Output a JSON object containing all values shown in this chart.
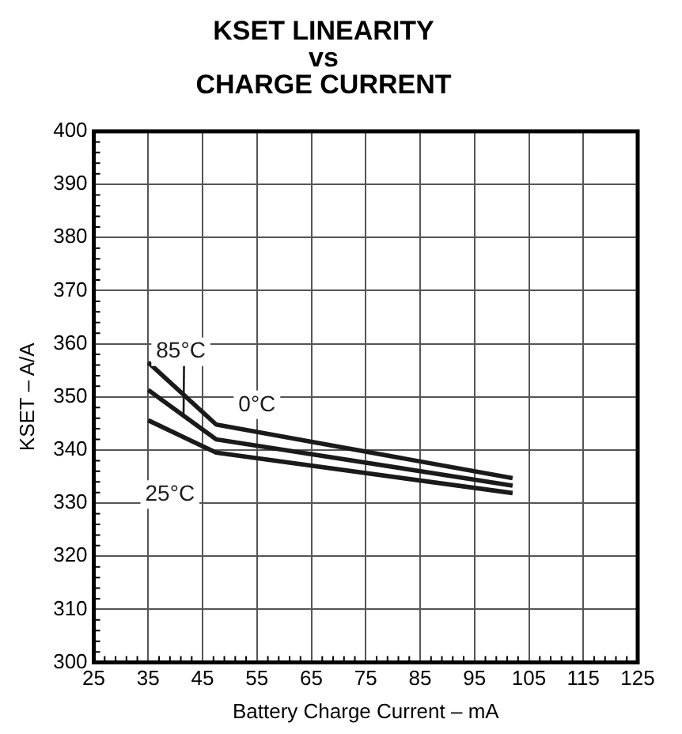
{
  "chart_data": {
    "type": "line",
    "title": "KSET LINEARITY\nvs\nCHARGE CURRENT",
    "xlabel": "Battery Charge Current – mA",
    "ylabel": "KSET – A/A",
    "series": [
      {
        "name": "0°C",
        "color": "#1a1a1a",
        "x": [
          35,
          47.5,
          102
        ],
        "values": [
          356.5,
          344.8,
          334.7
        ]
      },
      {
        "name": "85°C",
        "color": "#1a1a1a",
        "x": [
          35,
          47.5,
          102
        ],
        "values": [
          351.3,
          342,
          333.3
        ]
      },
      {
        "name": "25°C",
        "color": "#1a1a1a",
        "x": [
          35,
          47.5,
          102
        ],
        "values": [
          345.6,
          339.5,
          331.9
        ]
      }
    ],
    "xlim": [
      25,
      125
    ],
    "xticks": [
      25,
      35,
      45,
      55,
      65,
      75,
      85,
      95,
      105,
      115,
      125
    ],
    "ylim": [
      300,
      400
    ],
    "yticks": [
      300,
      310,
      320,
      330,
      340,
      350,
      360,
      370,
      380,
      390,
      400
    ],
    "grid": true,
    "legend": false,
    "marker": "none",
    "line_style": "solid"
  }
}
